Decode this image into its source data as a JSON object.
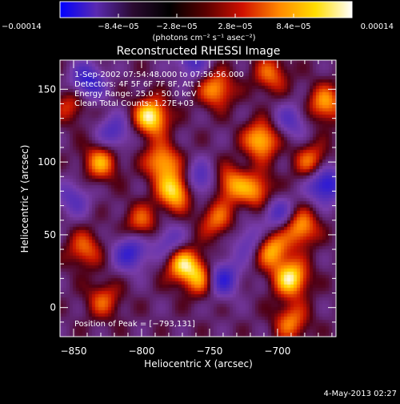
{
  "chart_data": {
    "type": "heatmap",
    "title": "Reconstructed RHESSI Image",
    "xlabel": "Heliocentric X (arcsec)",
    "ylabel": "Heliocentric Y (arcsec)",
    "xlim": [
      -860,
      -657
    ],
    "ylim": [
      -20,
      170
    ],
    "xticks": [
      -850,
      -800,
      -750,
      -700
    ],
    "xtick_labels": [
      "−850",
      "−800",
      "−750",
      "−700"
    ],
    "yticks": [
      0,
      50,
      100,
      150
    ],
    "ytick_labels": [
      "0",
      "50",
      "100",
      "150"
    ],
    "annotations": [
      "1-Sep-2002 07:54:48.000 to 07:56:56.000",
      "Detectors: 4F 5F 6F 7F 8F, Att 1",
      "Energy Range: 25.0 - 50.0 keV",
      "Clean     Total Counts: 1.27E+03"
    ],
    "peak_label": "Position of Peak = [−793,131]",
    "peak": [
      -793,
      131
    ],
    "colorbar": {
      "min": -0.00014,
      "max": 0.00014,
      "ticks": [
        -0.00014,
        -8.4e-05,
        -2.8e-05,
        2.8e-05,
        8.4e-05,
        0.00014
      ],
      "tick_labels": [
        "−0.00014",
        "−8.4e−05",
        "−2.8e−05",
        "2.8e−05",
        "8.4e−05",
        "0.00014"
      ],
      "units": "(photons cm⁻² s⁻¹ asec⁻²)",
      "colors": [
        "#0000ff",
        "#5a2ab0",
        "#2a0a30",
        "#000000",
        "#5a0000",
        "#d01000",
        "#ff8800",
        "#ffdd00",
        "#ffffff"
      ]
    },
    "sources": [
      {
        "x": -793,
        "y": 131,
        "amp": 1.0
      },
      {
        "x": -775,
        "y": 80,
        "amp": 0.95
      },
      {
        "x": -770,
        "y": 30,
        "amp": 0.85
      },
      {
        "x": -755,
        "y": 20,
        "amp": 0.75
      },
      {
        "x": -690,
        "y": 20,
        "amp": 0.95
      },
      {
        "x": -712,
        "y": 115,
        "amp": 0.85
      },
      {
        "x": -705,
        "y": 40,
        "amp": 0.8
      },
      {
        "x": -683,
        "y": 55,
        "amp": 0.75
      },
      {
        "x": -745,
        "y": 150,
        "amp": 0.7
      },
      {
        "x": -830,
        "y": 100,
        "amp": 0.7
      },
      {
        "x": -785,
        "y": 100,
        "amp": 0.75
      },
      {
        "x": -735,
        "y": 85,
        "amp": 0.65
      },
      {
        "x": -665,
        "y": 140,
        "amp": 0.7
      },
      {
        "x": -675,
        "y": 100,
        "amp": 0.6
      },
      {
        "x": -842,
        "y": 40,
        "amp": 0.55
      },
      {
        "x": -800,
        "y": 58,
        "amp": 0.55
      },
      {
        "x": -705,
        "y": 160,
        "amp": 0.55
      },
      {
        "x": -828,
        "y": 5,
        "amp": 0.5
      },
      {
        "x": -715,
        "y": 80,
        "amp": 0.65
      },
      {
        "x": -745,
        "y": 60,
        "amp": 0.55
      },
      {
        "x": -852,
        "y": 140,
        "amp": 0.45
      },
      {
        "x": -690,
        "y": -10,
        "amp": 0.6
      },
      {
        "x": -742,
        "y": 20,
        "amp": -0.85
      },
      {
        "x": -808,
        "y": 38,
        "amp": -0.7
      },
      {
        "x": -665,
        "y": 85,
        "amp": -0.9
      },
      {
        "x": -840,
        "y": 155,
        "amp": -0.75
      },
      {
        "x": -763,
        "y": 170,
        "amp": -0.55
      },
      {
        "x": -757,
        "y": 87,
        "amp": -0.6
      },
      {
        "x": -700,
        "y": 65,
        "amp": -0.55
      },
      {
        "x": -820,
        "y": 120,
        "amp": -0.55
      },
      {
        "x": -720,
        "y": 45,
        "amp": -0.5
      },
      {
        "x": -780,
        "y": 45,
        "amp": -0.5
      },
      {
        "x": -690,
        "y": 128,
        "amp": -0.45
      },
      {
        "x": -850,
        "y": 75,
        "amp": -0.45
      }
    ]
  },
  "footer": {
    "timestamp": "4-May-2013 02:27"
  }
}
